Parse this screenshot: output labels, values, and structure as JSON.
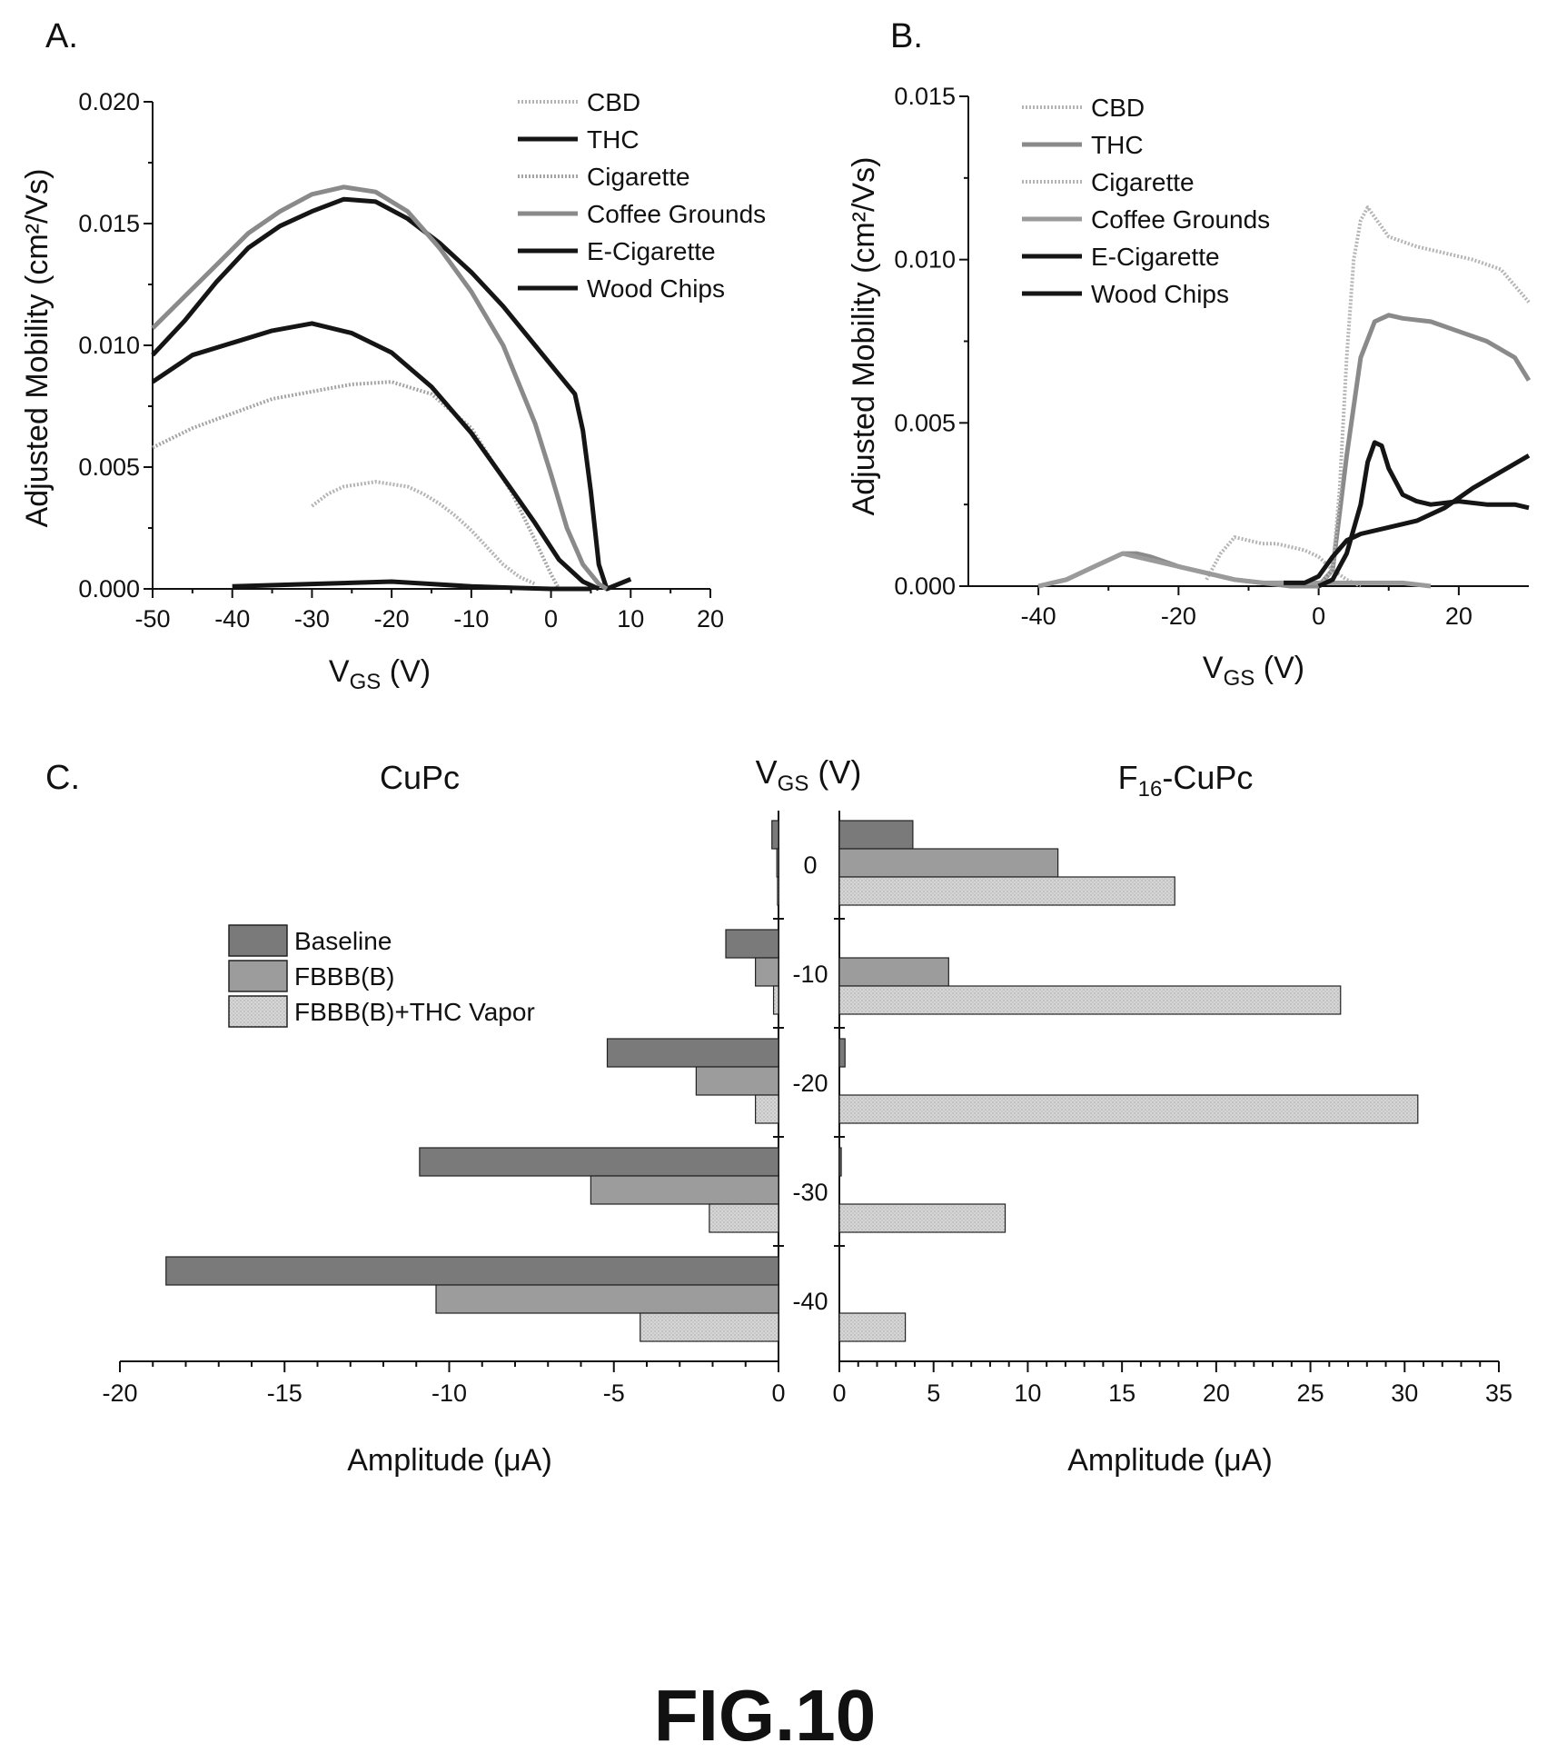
{
  "figure_label": "FIG.10",
  "chart_data": [
    {
      "panel": "A.",
      "type": "line",
      "title": "",
      "xlabel_main": "V",
      "xlabel_sub": "GS",
      "xlabel_unit": " (V)",
      "ylabel": "Adjusted Mobility (cm²/Vs)",
      "xlim": [
        -50,
        20
      ],
      "ylim": [
        0,
        0.02
      ],
      "xticks": [
        -50,
        -40,
        -30,
        -20,
        -10,
        0,
        10,
        20
      ],
      "yticks": [
        "0.000",
        "0.005",
        "0.010",
        "0.015",
        "0.020"
      ],
      "legend_position": "top-right",
      "series": [
        {
          "name": "CBD",
          "color": "#b4b4b4",
          "style": "dotted",
          "x": [
            -30,
            -28,
            -26,
            -24,
            -22,
            -20,
            -18,
            -16,
            -14,
            -12,
            -10,
            -8,
            -6,
            -4,
            -2
          ],
          "y": [
            0.0034,
            0.0039,
            0.0042,
            0.0043,
            0.0044,
            0.0043,
            0.0042,
            0.0039,
            0.0035,
            0.003,
            0.0024,
            0.0017,
            0.001,
            0.0005,
            0.0002
          ]
        },
        {
          "name": "THC",
          "color": "#151515",
          "style": "solid",
          "x": [
            -50,
            -46,
            -42,
            -38,
            -34,
            -30,
            -26,
            -22,
            -18,
            -14,
            -10,
            -6,
            -2,
            1,
            3,
            4,
            5,
            6,
            7,
            10
          ],
          "y": [
            0.0096,
            0.011,
            0.0126,
            0.014,
            0.0149,
            0.0155,
            0.016,
            0.0159,
            0.0152,
            0.0142,
            0.013,
            0.0116,
            0.01,
            0.0088,
            0.008,
            0.0065,
            0.004,
            0.001,
            0.0,
            0.0004
          ]
        },
        {
          "name": "Cigarette",
          "color": "#a5a5a5",
          "style": "dotted",
          "x": [
            -50,
            -45,
            -40,
            -35,
            -30,
            -25,
            -20,
            -15,
            -10,
            -5,
            -2,
            0,
            1
          ],
          "y": [
            0.0058,
            0.0066,
            0.0072,
            0.0078,
            0.0081,
            0.0084,
            0.0085,
            0.008,
            0.0066,
            0.004,
            0.002,
            0.0006,
            0.0
          ]
        },
        {
          "name": "Coffee Grounds",
          "color": "#8a8a8a",
          "style": "solid",
          "x": [
            -50,
            -46,
            -42,
            -38,
            -34,
            -30,
            -26,
            -22,
            -18,
            -14,
            -10,
            -6,
            -2,
            0,
            2,
            4,
            6,
            7
          ],
          "y": [
            0.0107,
            0.012,
            0.0133,
            0.0146,
            0.0155,
            0.0162,
            0.0165,
            0.0163,
            0.0155,
            0.014,
            0.0122,
            0.01,
            0.0068,
            0.0047,
            0.0025,
            0.001,
            0.0002,
            0.0
          ]
        },
        {
          "name": "E-Cigarette",
          "color": "#151515",
          "style": "solid",
          "x": [
            -50,
            -45,
            -40,
            -35,
            -30,
            -25,
            -20,
            -15,
            -10,
            -5,
            -2,
            1,
            4,
            6
          ],
          "y": [
            0.0085,
            0.0096,
            0.0101,
            0.0106,
            0.0109,
            0.0105,
            0.0097,
            0.0083,
            0.0064,
            0.0041,
            0.0027,
            0.0012,
            0.0003,
            0.0
          ]
        },
        {
          "name": "Wood Chips",
          "color": "#151515",
          "style": "solid",
          "x": [
            -40,
            -30,
            -20,
            -15,
            -10,
            -5,
            0,
            5
          ],
          "y": [
            0.0001,
            0.0002,
            0.0003,
            0.0002,
            0.0001,
            5e-05,
            0.0,
            0.0
          ]
        }
      ]
    },
    {
      "panel": "B.",
      "type": "line",
      "title": "",
      "xlabel_main": "V",
      "xlabel_sub": "GS",
      "xlabel_unit": " (V)",
      "ylabel": "Adjusted Mobility (cm²/Vs)",
      "xlim": [
        -50,
        30
      ],
      "ylim": [
        0,
        0.015
      ],
      "xticks": [
        -40,
        -20,
        0,
        20
      ],
      "yticks": [
        "0.000",
        "0.005",
        "0.010",
        "0.015"
      ],
      "legend_position": "top-left",
      "series": [
        {
          "name": "CBD",
          "color": "#b4b4b4",
          "style": "dotted",
          "x": [
            -16,
            -14,
            -12,
            -10,
            -8,
            -6,
            -4,
            -2,
            0,
            2,
            4,
            6
          ],
          "y": [
            0.0002,
            0.001,
            0.0015,
            0.0014,
            0.0013,
            0.0013,
            0.0012,
            0.0011,
            0.0009,
            0.0005,
            0.0002,
            0.0
          ]
        },
        {
          "name": "THC",
          "color": "#8a8a8a",
          "style": "solid",
          "x": [
            -40,
            -36,
            -32,
            -28,
            -26,
            -24,
            -20,
            -16,
            -12,
            -8,
            -4,
            0,
            2,
            4,
            6,
            8,
            10,
            12,
            16,
            20,
            24,
            28,
            30
          ],
          "y": [
            0.0,
            0.0002,
            0.0006,
            0.001,
            0.001,
            0.0009,
            0.0006,
            0.0004,
            0.0002,
            0.0001,
            0.0,
            0.0,
            0.0005,
            0.004,
            0.007,
            0.0081,
            0.0083,
            0.0082,
            0.0081,
            0.0078,
            0.0075,
            0.007,
            0.0063
          ]
        },
        {
          "name": "Cigarette",
          "color": "#b4b4b4",
          "style": "dotted",
          "x": [
            0,
            2,
            3,
            4,
            5,
            6,
            7,
            8,
            10,
            14,
            18,
            22,
            26,
            30
          ],
          "y": [
            0.0,
            0.0005,
            0.003,
            0.007,
            0.01,
            0.0112,
            0.0116,
            0.0113,
            0.0107,
            0.0104,
            0.0102,
            0.01,
            0.0097,
            0.0087
          ]
        },
        {
          "name": "Coffee Grounds",
          "color": "#9a9a9a",
          "style": "solid",
          "x": [
            -40,
            -36,
            -32,
            -28,
            -24,
            -20,
            -16,
            -12,
            -8,
            -4,
            0,
            4,
            8,
            12,
            16
          ],
          "y": [
            0.0,
            0.0002,
            0.0006,
            0.001,
            0.0008,
            0.0006,
            0.0004,
            0.0002,
            0.0001,
            0.0001,
            0.0001,
            0.0001,
            0.0001,
            0.0001,
            0.0
          ]
        },
        {
          "name": "E-Cigarette",
          "color": "#151515",
          "style": "solid",
          "x": [
            0,
            2,
            4,
            6,
            7,
            8,
            9,
            10,
            12,
            14,
            16,
            20,
            24,
            28,
            30
          ],
          "y": [
            0.0,
            0.0002,
            0.001,
            0.0025,
            0.0038,
            0.0044,
            0.0043,
            0.0036,
            0.0028,
            0.0026,
            0.0025,
            0.0026,
            0.0025,
            0.0025,
            0.0024
          ]
        },
        {
          "name": "Wood Chips",
          "color": "#151515",
          "style": "solid",
          "x": [
            -5,
            -2,
            0,
            2,
            4,
            6,
            10,
            14,
            18,
            22,
            26,
            30
          ],
          "y": [
            0.0001,
            0.0001,
            0.0003,
            0.0009,
            0.0014,
            0.0016,
            0.0018,
            0.002,
            0.0024,
            0.003,
            0.0035,
            0.004
          ]
        }
      ]
    },
    {
      "panel": "C.",
      "type": "bar",
      "orientation": "horizontal",
      "center_label_main": "V",
      "center_label_sub": "GS",
      "center_label_unit": " (V)",
      "categories": [
        "0",
        "-10",
        "-20",
        "-30",
        "-40"
      ],
      "legend_position": "top-left",
      "series_styles": [
        {
          "name": "Baseline",
          "color": "#7a7a7a"
        },
        {
          "name": "FBBB(B)",
          "color": "#9c9c9c"
        },
        {
          "name": "FBBB(B)+THC Vapor",
          "color": "#cfcfcf"
        }
      ],
      "left": {
        "title": "CuPc",
        "xlabel": "Amplitude (μA)",
        "xlim": [
          -20,
          0
        ],
        "xticks": [
          "-20",
          "-15",
          "-10",
          "-5",
          "0"
        ],
        "series": [
          {
            "name": "Baseline",
            "values": [
              -0.2,
              -1.6,
              -5.2,
              -10.9,
              -18.6
            ]
          },
          {
            "name": "FBBB(B)",
            "values": [
              -0.05,
              -0.7,
              -2.5,
              -5.7,
              -10.4
            ]
          },
          {
            "name": "FBBB(B)+THC Vapor",
            "values": [
              -0.03,
              -0.15,
              -0.7,
              -2.1,
              -4.2
            ]
          }
        ]
      },
      "right": {
        "title_main": "F",
        "title_sub": "16",
        "title_rest": "-CuPc",
        "xlabel": "Amplitude (μA)",
        "xlim": [
          0,
          35
        ],
        "xticks": [
          "0",
          "5",
          "10",
          "15",
          "20",
          "25",
          "30",
          "35"
        ],
        "series": [
          {
            "name": "Baseline",
            "values": [
              3.9,
              0.0,
              0.3,
              0.1,
              0.0
            ]
          },
          {
            "name": "FBBB(B)",
            "values": [
              11.6,
              5.8,
              0.0,
              0.0,
              0.0
            ]
          },
          {
            "name": "FBBB(B)+THC Vapor",
            "values": [
              17.8,
              26.6,
              30.7,
              8.8,
              3.5
            ]
          }
        ]
      }
    }
  ]
}
